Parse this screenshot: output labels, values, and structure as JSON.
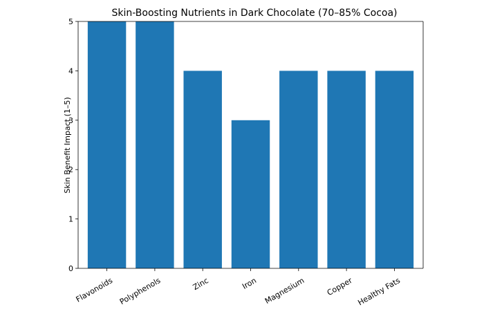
{
  "chart_data": {
    "type": "bar",
    "title": "Skin-Boosting Nutrients in Dark Chocolate (70–85% Cocoa)",
    "xlabel": "",
    "ylabel": "Skin Benefit Impact (1–5)",
    "categories": [
      "Flavonoids",
      "Polyphenols",
      "Zinc",
      "Iron",
      "Magnesium",
      "Copper",
      "Healthy Fats"
    ],
    "values": [
      5,
      5,
      4,
      3,
      4,
      4,
      4
    ],
    "ylim": [
      0,
      5
    ],
    "yticks": [
      0,
      1,
      2,
      3,
      4,
      5
    ],
    "bar_color": "#1f77b4",
    "grid": false,
    "legend": "none",
    "x_tick_rotation_deg": 30
  }
}
